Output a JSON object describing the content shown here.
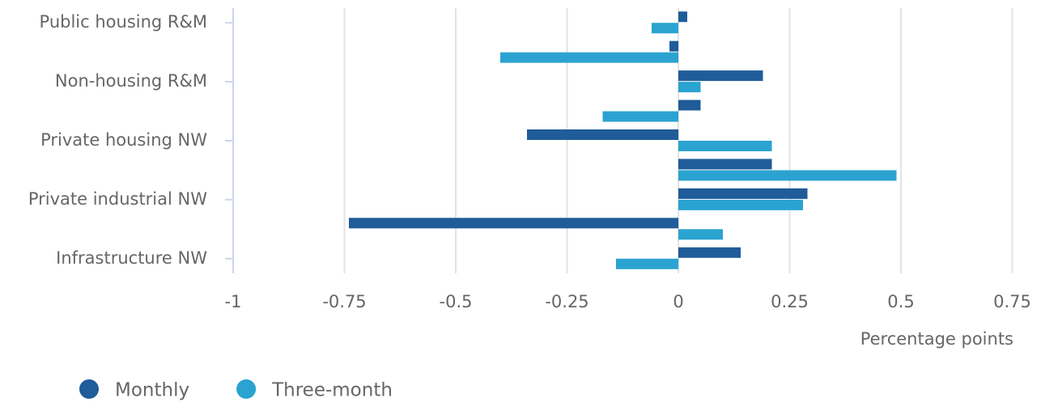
{
  "chart_data": {
    "type": "bar",
    "orientation": "horizontal",
    "categories": [
      "Public housing R&M",
      null,
      "Non-housing R&M",
      null,
      "Private housing NW",
      null,
      "Private industrial NW",
      null,
      "Infrastructure NW"
    ],
    "series": [
      {
        "name": "Monthly",
        "color": "#1f5c99",
        "values": [
          0.02,
          -0.02,
          0.19,
          0.05,
          -0.34,
          0.21,
          0.29,
          -0.74,
          0.14
        ]
      },
      {
        "name": "Three-month",
        "color": "#2ba3d1",
        "values": [
          -0.06,
          -0.4,
          0.05,
          -0.17,
          0.21,
          0.49,
          0.28,
          0.1,
          -0.14
        ]
      }
    ],
    "xlim": [
      -1,
      0.75
    ],
    "xticks": [
      -1,
      -0.75,
      -0.5,
      -0.25,
      0,
      0.25,
      0.5,
      0.75
    ],
    "xlabel": "Percentage points",
    "grid": true,
    "legend": "bottom-left"
  }
}
